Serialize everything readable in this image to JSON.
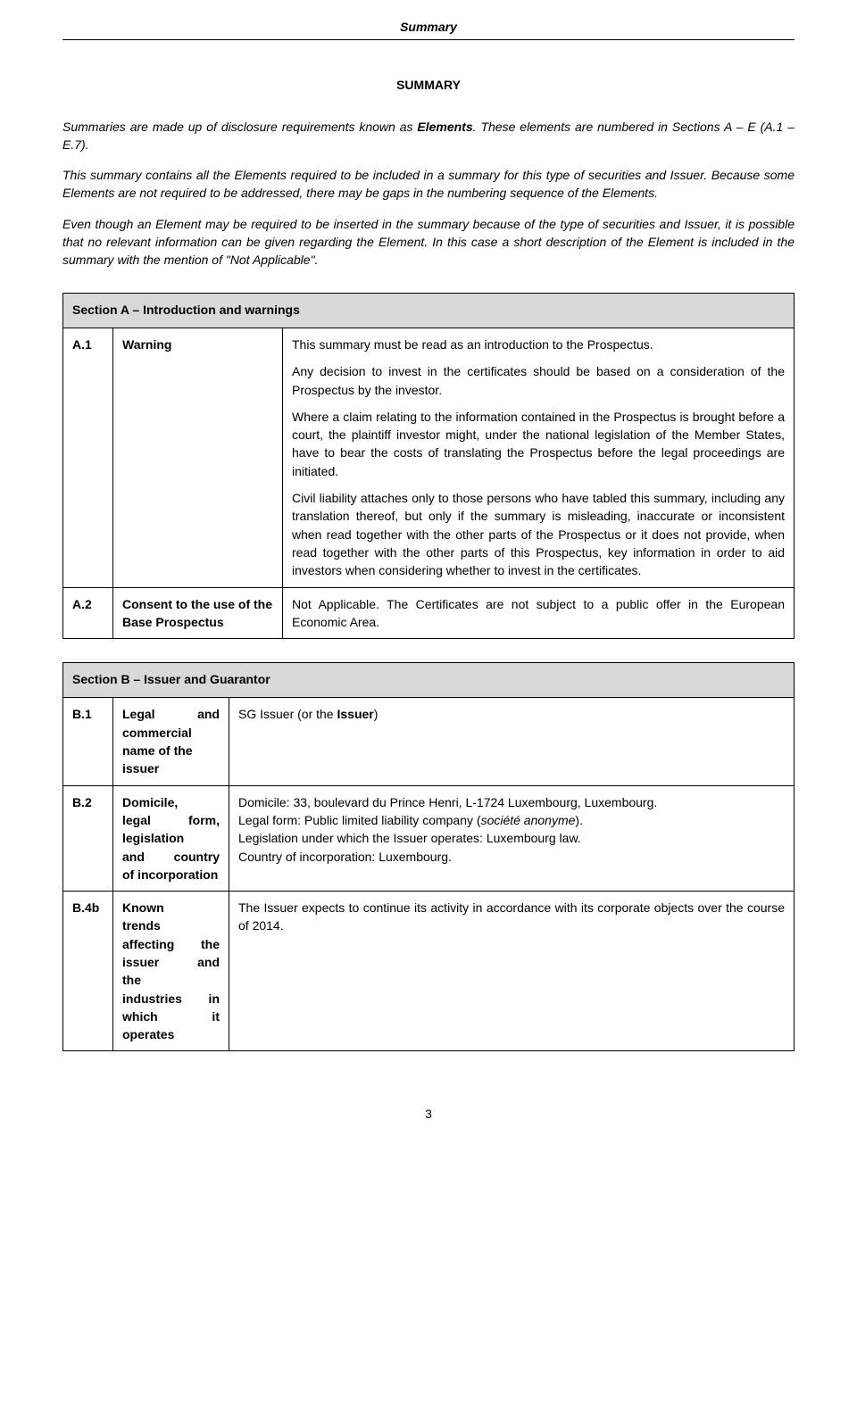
{
  "header": "Summary",
  "title": "SUMMARY",
  "intro": {
    "p1a": "Summaries are made up of disclosure requirements known as ",
    "p1b": "Elements",
    "p1c": ". These elements are numbered in Sections A – E (A.1 – E.7).",
    "p2": "This summary contains all the Elements required to be included in a summary for this type of securities and Issuer. Because some Elements are not required to be addressed, there may be gaps in the numbering sequence of the Elements.",
    "p3": "Even though an Element may be required to be inserted in the summary because of the type of securities and Issuer, it is possible that no relevant information can be given regarding the Element. In this case a short description of the Element is included in the summary with the mention of \"Not Applicable\"."
  },
  "sectionA": {
    "heading": "Section A – Introduction and warnings",
    "rows": [
      {
        "code": "A.1",
        "label": "Warning",
        "paras": [
          "This summary must be read as an introduction to the Prospectus.",
          "Any decision to invest in the certificates should be based on a consideration of the Prospectus by the investor.",
          "Where a claim relating to the information contained in the Prospectus is brought before a court, the plaintiff investor might, under the national legislation of the Member States, have to bear the costs of translating the Prospectus before the legal proceedings are initiated.",
          "Civil liability attaches only to those persons who have tabled this summary, including any translation thereof, but only if the summary is misleading, inaccurate or inconsistent when read together with the other parts of the Prospectus or it does not provide, when read together with the other parts of this Prospectus, key information in order to aid investors when considering whether to invest in the certificates."
        ]
      },
      {
        "code": "A.2",
        "label": "Consent to the use of the Base Prospectus",
        "paras": [
          "Not Applicable. The Certificates are not subject to a public offer in the European Economic Area."
        ]
      }
    ]
  },
  "sectionB": {
    "heading": "Section B – Issuer and Guarantor",
    "rows": [
      {
        "code": "B.1",
        "label_html": "<span class=\"label-justify\" style=\"display:block\">Legal and</span>commercial name of the issuer",
        "desc_html": "SG Issuer (or the <strong>Issuer</strong>)"
      },
      {
        "code": "B.2",
        "label_html": "Domicile,<br><span class=\"label-justify\" style=\"display:block\">legal form,</span>legislation <span class=\"label-justify\" style=\"display:block\">and country</span>of incorporation",
        "desc_html": "Domicile: 33, boulevard du Prince Henri, L-1724 Luxembourg, Luxembourg.<br>Legal form: Public limited liability company (<em>société anonyme</em>).<br>Legislation under which the Issuer operates: Luxembourg law.<br>Country of incorporation: Luxembourg."
      },
      {
        "code": "B.4b",
        "label_html": "Known<br>trends <span class=\"label-justify\" style=\"display:block\">affecting the</span><span class=\"label-justify\" style=\"display:block\">issuer and</span>the <span class=\"label-justify\" style=\"display:block\">industries in</span><span class=\"label-justify\" style=\"display:block\">which it</span>operates",
        "desc_html": "The Issuer expects to continue its activity in accordance with its corporate objects over the course of 2014."
      }
    ]
  },
  "pageNumber": "3"
}
